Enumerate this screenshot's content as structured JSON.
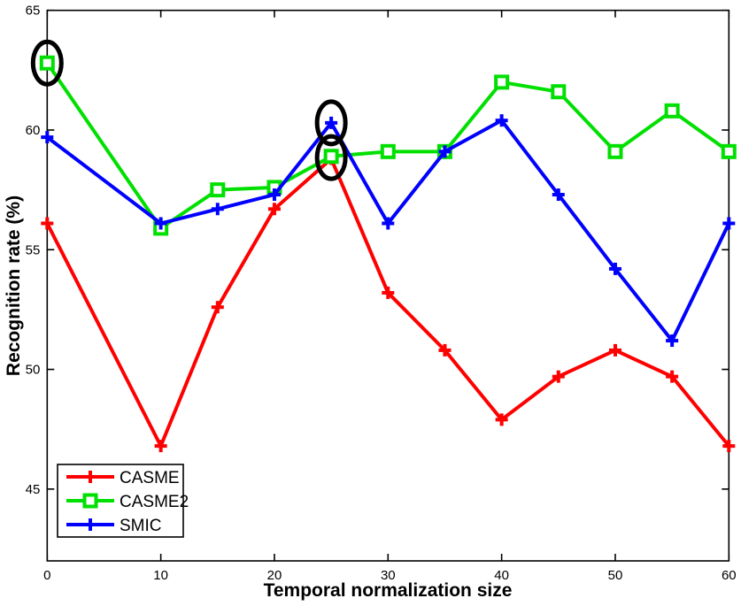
{
  "figure": {
    "background": "#FFFFFF",
    "axis_color": "#000000"
  },
  "chart_data": {
    "type": "line",
    "title": "",
    "xlabel": "Temporal normalization size",
    "ylabel": "Recognition rate (%)",
    "xlim": [
      0,
      60
    ],
    "ylim": [
      42,
      65
    ],
    "xticks": [
      0,
      10,
      20,
      30,
      40,
      50,
      60
    ],
    "yticks": [
      45,
      50,
      55,
      60,
      65
    ],
    "grid": false,
    "legend_position": "lower-left",
    "x": [
      0,
      10,
      15,
      20,
      25,
      30,
      35,
      40,
      45,
      50,
      55,
      60
    ],
    "series": [
      {
        "name": "CASME",
        "color": "#FF0000",
        "marker": "plus",
        "values": [
          56.1,
          46.8,
          52.6,
          56.7,
          58.8,
          53.2,
          50.8,
          47.9,
          49.7,
          50.8,
          49.7,
          46.8
        ]
      },
      {
        "name": "CASME2",
        "color": "#00E000",
        "marker": "square",
        "values": [
          62.8,
          55.9,
          57.5,
          57.6,
          58.9,
          59.1,
          59.1,
          62.0,
          61.6,
          59.1,
          60.8,
          59.1
        ]
      },
      {
        "name": "SMIC",
        "color": "#0000FF",
        "marker": "plus",
        "values": [
          59.7,
          56.1,
          56.7,
          57.3,
          60.3,
          56.1,
          59.1,
          60.4,
          57.3,
          54.2,
          51.2,
          56.1
        ]
      }
    ],
    "annotations": [
      {
        "type": "circle",
        "series": "CASME2",
        "x": 0,
        "y": 62.8,
        "color": "#000000"
      },
      {
        "type": "circle",
        "series": "SMIC",
        "x": 25,
        "y": 60.3,
        "color": "#000000"
      },
      {
        "type": "circle",
        "series": "CASME",
        "x": 25,
        "y": 58.85,
        "color": "#000000"
      }
    ]
  }
}
